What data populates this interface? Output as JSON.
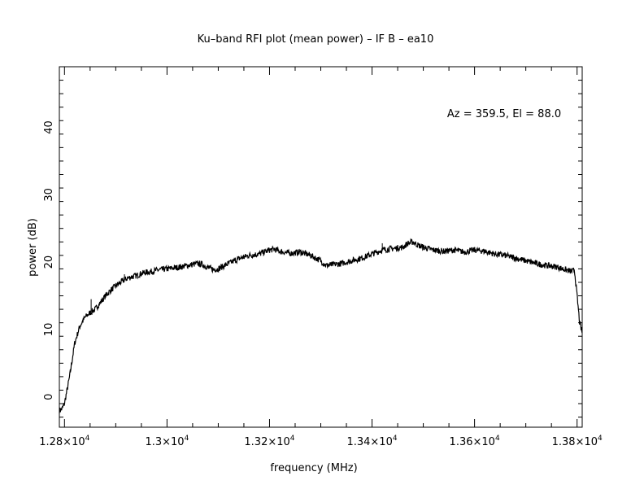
{
  "chart_data": {
    "type": "line",
    "title": "Ku–band RFI plot (mean power) – IF B – ea10",
    "xlabel": "frequency (MHz)",
    "ylabel": "power (dB)",
    "annotation": "Az = 359.5, El = 88.0",
    "xlim": [
      12790,
      13810
    ],
    "ylim": [
      -4.5,
      49
    ],
    "x_ticks": [
      {
        "value": 12800,
        "mantissa": "1.28",
        "exp": "4"
      },
      {
        "value": 13000,
        "mantissa": "1.3",
        "exp": "4"
      },
      {
        "value": 13200,
        "mantissa": "1.32",
        "exp": "4"
      },
      {
        "value": 13400,
        "mantissa": "1.34",
        "exp": "4"
      },
      {
        "value": 13600,
        "mantissa": "1.36",
        "exp": "4"
      },
      {
        "value": 13800,
        "mantissa": "1.38",
        "exp": "4"
      }
    ],
    "y_ticks": [
      {
        "value": 0,
        "label": "0"
      },
      {
        "value": 10,
        "label": "10"
      },
      {
        "value": 20,
        "label": "20"
      },
      {
        "value": 30,
        "label": "30"
      },
      {
        "value": 40,
        "label": "40"
      }
    ],
    "grid": false,
    "series": [
      {
        "color": "#000000",
        "x": [
          12790,
          12795,
          12800,
          12810,
          12820,
          12830,
          12840,
          12850,
          12860,
          12870,
          12880,
          12890,
          12900,
          12910,
          12920,
          12930,
          12940,
          12950,
          12960,
          12970,
          12980,
          12990,
          13000,
          13020,
          13040,
          13060,
          13070,
          13080,
          13090,
          13100,
          13110,
          13120,
          13140,
          13160,
          13180,
          13200,
          13210,
          13220,
          13240,
          13260,
          13280,
          13300,
          13310,
          13320,
          13340,
          13360,
          13380,
          13400,
          13420,
          13440,
          13460,
          13470,
          13480,
          13490,
          13500,
          13520,
          13540,
          13560,
          13580,
          13600,
          13620,
          13640,
          13660,
          13680,
          13700,
          13720,
          13740,
          13760,
          13780,
          13790,
          13795,
          13800,
          13805,
          13810
        ],
        "y": [
          -2,
          -1.8,
          -1,
          3,
          8,
          10.5,
          11.8,
          12.5,
          13,
          14,
          15,
          15.8,
          16.5,
          17,
          17.5,
          17.8,
          18,
          18.3,
          18.5,
          18.6,
          18.8,
          18.9,
          19,
          19.2,
          19.5,
          19.8,
          19.6,
          19.2,
          18.9,
          19,
          19.4,
          19.8,
          20.5,
          21,
          21.2,
          21.8,
          21.9,
          21.6,
          21.3,
          21.5,
          21,
          20.2,
          19.5,
          19.6,
          19.8,
          20.2,
          20.6,
          21.2,
          21.8,
          22,
          22.2,
          22.8,
          23,
          22.5,
          22.2,
          21.8,
          21.6,
          21.8,
          21.5,
          21.8,
          21.6,
          21.2,
          21,
          20.6,
          20.2,
          19.8,
          19.5,
          19.3,
          18.8,
          18.6,
          18.8,
          15,
          11,
          9.5
        ],
        "spikes": [
          {
            "x": 12852,
            "y": 14.5
          },
          {
            "x": 12917,
            "y": 18.2
          },
          {
            "x": 13420,
            "y": 22.8
          }
        ]
      }
    ]
  }
}
